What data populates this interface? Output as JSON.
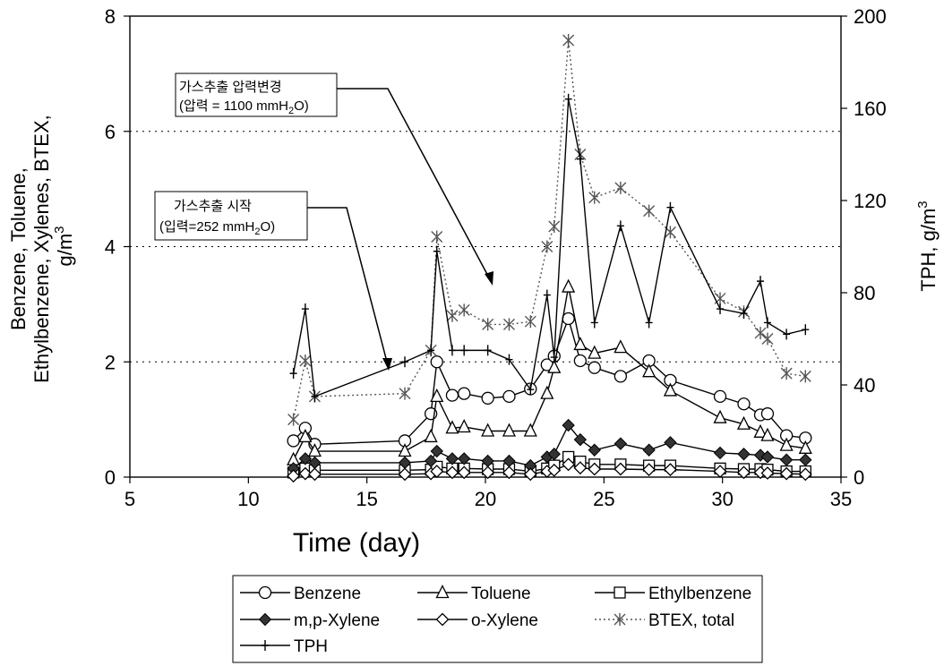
{
  "chart_data": {
    "type": "line",
    "xlabel": "Time (day)",
    "ylabel_lines": [
      "Benzene, Toluene,",
      "Ethylbenzene, Xylenes, BTEX,",
      "g/m"
    ],
    "ylabel_sup": "3",
    "y2label": "TPH, g/m",
    "y2label_sup": "3",
    "xlim": [
      5,
      35
    ],
    "ylim": [
      0,
      8
    ],
    "y2lim": [
      0,
      200
    ],
    "x_ticks": [
      5,
      10,
      15,
      20,
      25,
      30,
      35
    ],
    "y_ticks": [
      0,
      2,
      4,
      6,
      8
    ],
    "y2_ticks": [
      0,
      40,
      80,
      120,
      160,
      200
    ],
    "grid": "horizontal dotted at y = 2, 4, 6",
    "legend_position": "bottom",
    "series": [
      {
        "name": "Benzene",
        "axis": "left",
        "marker": "circle",
        "line": "solid",
        "x": [
          11.9,
          12.4,
          12.8,
          16.6,
          17.7,
          17.95,
          18.6,
          19.1,
          20.1,
          21.0,
          21.9,
          22.6,
          22.9,
          23.5,
          24.0,
          24.6,
          25.7,
          26.9,
          27.8,
          29.9,
          30.9,
          31.6,
          31.9,
          32.7,
          33.5
        ],
        "y": [
          0.63,
          0.85,
          0.57,
          0.63,
          1.1,
          2.0,
          1.42,
          1.45,
          1.37,
          1.4,
          1.53,
          1.95,
          2.1,
          2.75,
          2.02,
          1.9,
          1.75,
          2.02,
          1.68,
          1.4,
          1.27,
          1.08,
          1.1,
          0.72,
          0.68
        ]
      },
      {
        "name": "Toluene",
        "axis": "left",
        "marker": "triangle",
        "line": "solid",
        "x": [
          11.9,
          12.4,
          12.8,
          16.6,
          17.7,
          17.95,
          18.6,
          19.1,
          20.1,
          21.0,
          21.9,
          22.6,
          22.9,
          23.5,
          24.0,
          24.6,
          25.7,
          26.9,
          27.8,
          29.9,
          30.9,
          31.6,
          31.9,
          32.7,
          33.5
        ],
        "y": [
          0.3,
          0.7,
          0.45,
          0.45,
          0.7,
          1.4,
          0.85,
          0.87,
          0.8,
          0.8,
          0.8,
          1.45,
          1.9,
          3.3,
          2.3,
          2.15,
          2.25,
          1.83,
          1.5,
          1.03,
          0.92,
          0.78,
          0.72,
          0.55,
          0.5
        ]
      },
      {
        "name": "Ethylbenzene",
        "axis": "left",
        "marker": "square",
        "line": "solid",
        "x": [
          11.9,
          12.4,
          12.8,
          16.6,
          17.7,
          17.95,
          18.6,
          19.1,
          20.1,
          21.0,
          21.9,
          22.6,
          22.9,
          23.5,
          24.0,
          24.6,
          25.7,
          26.9,
          27.8,
          29.9,
          30.9,
          31.6,
          31.9,
          32.7,
          33.5
        ],
        "y": [
          0.08,
          0.15,
          0.12,
          0.12,
          0.13,
          0.18,
          0.15,
          0.15,
          0.14,
          0.14,
          0.1,
          0.15,
          0.2,
          0.35,
          0.27,
          0.22,
          0.22,
          0.2,
          0.2,
          0.15,
          0.14,
          0.14,
          0.13,
          0.1,
          0.1
        ]
      },
      {
        "name": "m,p-Xylene",
        "axis": "left",
        "marker": "diamond-filled",
        "line": "solid",
        "x": [
          11.9,
          12.4,
          12.8,
          16.6,
          17.7,
          17.95,
          18.6,
          19.1,
          20.1,
          21.0,
          21.9,
          22.6,
          22.9,
          23.5,
          24.0,
          24.6,
          25.7,
          26.9,
          27.8,
          29.9,
          30.9,
          31.6,
          31.9,
          32.7,
          33.5
        ],
        "y": [
          0.15,
          0.32,
          0.25,
          0.25,
          0.28,
          0.45,
          0.32,
          0.32,
          0.28,
          0.28,
          0.2,
          0.35,
          0.4,
          0.9,
          0.65,
          0.47,
          0.58,
          0.47,
          0.6,
          0.42,
          0.4,
          0.38,
          0.35,
          0.3,
          0.3
        ]
      },
      {
        "name": "o-Xylene",
        "axis": "left",
        "marker": "diamond-open",
        "line": "solid",
        "x": [
          11.9,
          12.4,
          12.8,
          16.6,
          17.7,
          17.95,
          18.6,
          19.1,
          20.1,
          21.0,
          21.9,
          22.6,
          22.9,
          23.5,
          24.0,
          24.6,
          25.7,
          26.9,
          27.8,
          29.9,
          30.9,
          31.6,
          31.9,
          32.7,
          33.5
        ],
        "y": [
          0.02,
          0.06,
          0.05,
          0.05,
          0.06,
          0.1,
          0.08,
          0.08,
          0.08,
          0.08,
          0.05,
          0.1,
          0.12,
          0.22,
          0.16,
          0.14,
          0.14,
          0.13,
          0.13,
          0.1,
          0.08,
          0.08,
          0.07,
          0.06,
          0.05
        ]
      },
      {
        "name": "BTEX, total",
        "axis": "left",
        "marker": "asterisk",
        "line": "dotted",
        "x": [
          11.9,
          12.4,
          12.8,
          16.6,
          17.7,
          17.95,
          18.6,
          19.1,
          20.1,
          21.0,
          21.9,
          22.6,
          22.9,
          23.5,
          24.0,
          24.6,
          25.7,
          26.9,
          27.8,
          29.9,
          30.9,
          31.6,
          31.9,
          32.7,
          33.5
        ],
        "y": [
          1.0,
          2.02,
          1.4,
          1.45,
          2.2,
          4.17,
          2.8,
          2.9,
          2.65,
          2.65,
          2.7,
          4.0,
          4.35,
          7.58,
          5.6,
          4.85,
          5.02,
          4.62,
          4.25,
          3.1,
          2.87,
          2.5,
          2.4,
          1.8,
          1.75
        ]
      },
      {
        "name": "TPH",
        "axis": "right",
        "marker": "plus",
        "line": "solid",
        "x": [
          11.9,
          12.4,
          12.8,
          16.6,
          17.7,
          17.95,
          18.6,
          19.1,
          20.1,
          21.0,
          21.9,
          22.6,
          22.9,
          23.5,
          24.0,
          24.6,
          25.7,
          26.9,
          27.8,
          29.9,
          30.9,
          31.6,
          31.9,
          32.7,
          33.5
        ],
        "y": [
          45,
          73,
          35,
          50,
          55,
          98,
          55,
          55,
          55,
          51,
          38,
          79,
          52,
          164,
          138,
          67,
          109,
          67,
          117,
          73,
          71,
          85,
          67,
          62,
          64
        ]
      }
    ],
    "annotations": [
      {
        "text": "가스추출 시작",
        "sub_prefix": "(입력=252 mmH",
        "sub_sub": "2",
        "sub_suffix": "O)"
      },
      {
        "text": "가스추출 압력변경",
        "sub_prefix": "(압력 = 1100 mmH",
        "sub_sub": "2",
        "sub_suffix": "O)"
      }
    ]
  }
}
